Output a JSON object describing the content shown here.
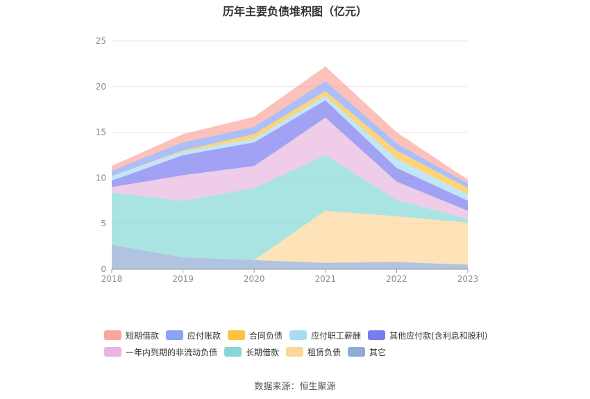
{
  "chart_data": {
    "type": "area",
    "stacked": true,
    "title": "历年主要负债堆积图（亿元）",
    "source": "数据来源：恒生聚源",
    "x": [
      "2018",
      "2019",
      "2020",
      "2021",
      "2022",
      "2023"
    ],
    "ylim": [
      0,
      25
    ],
    "yticks": [
      "0",
      "5",
      "10",
      "15",
      "20",
      "25"
    ],
    "grid": true,
    "legend_position": "bottom",
    "series": [
      {
        "name": "其它",
        "color": "#8eabd6",
        "values": [
          2.7,
          1.3,
          1.0,
          0.7,
          0.8,
          0.5
        ]
      },
      {
        "name": "租赁负债",
        "color": "#fdd79a",
        "values": [
          0.0,
          0.0,
          0.0,
          5.7,
          5.0,
          4.6
        ]
      },
      {
        "name": "长期借款",
        "color": "#86d8d6",
        "values": [
          5.7,
          6.2,
          7.9,
          6.1,
          1.8,
          0.4
        ]
      },
      {
        "name": "一年内到期的非流动负债",
        "color": "#e8b6dd",
        "values": [
          0.6,
          2.8,
          2.4,
          4.1,
          2.0,
          0.9
        ]
      },
      {
        "name": "其他应付款(含利息和股利)",
        "color": "#7b7bf0",
        "values": [
          0.7,
          2.2,
          2.6,
          1.9,
          1.5,
          1.1
        ]
      },
      {
        "name": "应付职工薪酬",
        "color": "#a8dcf5",
        "values": [
          0.5,
          0.4,
          0.4,
          0.5,
          1.0,
          0.7
        ]
      },
      {
        "name": "合同负债",
        "color": "#fbc33f",
        "values": [
          0.0,
          0.1,
          0.5,
          0.5,
          0.9,
          0.7
        ]
      },
      {
        "name": "应付账款",
        "color": "#8aa4f5",
        "values": [
          0.6,
          0.9,
          0.8,
          1.1,
          0.8,
          0.5
        ]
      },
      {
        "name": "短期借款",
        "color": "#f9a79c",
        "values": [
          0.5,
          0.9,
          1.1,
          1.6,
          1.2,
          0.4
        ]
      }
    ],
    "legend_order": [
      [
        "短期借款",
        "应付账款",
        "合同负债",
        "应付职工薪酬",
        "其他应付款(含利息和股利)"
      ],
      [
        "一年内到期的非流动负债",
        "长期借款",
        "租赁负债",
        "其它"
      ]
    ]
  }
}
